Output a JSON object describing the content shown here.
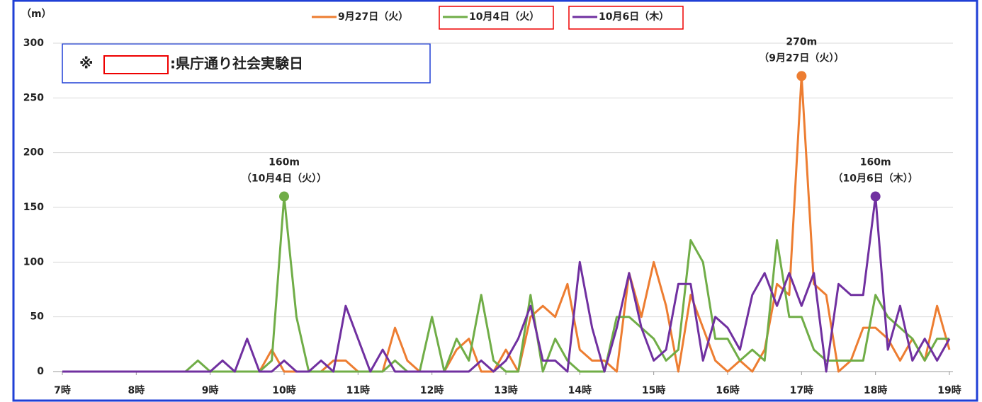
{
  "chart_data": {
    "type": "line",
    "y_label": "（m）",
    "note": {
      "symbol": "※",
      "text": ":県庁通り社会実験日"
    },
    "categories": [
      "7時",
      null,
      null,
      null,
      null,
      null,
      "8時",
      null,
      null,
      null,
      null,
      null,
      "9時",
      null,
      null,
      null,
      null,
      null,
      "10時",
      null,
      null,
      null,
      null,
      null,
      "11時",
      null,
      null,
      null,
      null,
      null,
      "12時",
      null,
      null,
      null,
      null,
      null,
      "13時",
      null,
      null,
      null,
      null,
      null,
      "14時",
      null,
      null,
      null,
      null,
      null,
      "15時",
      null,
      null,
      null,
      null,
      null,
      "16時",
      null,
      null,
      null,
      null,
      null,
      "17時",
      null,
      null,
      null,
      null,
      null,
      "18時",
      null,
      null,
      null,
      null,
      null,
      "19時"
    ],
    "ylim": [
      0,
      300
    ],
    "yticks": [
      0,
      50,
      100,
      150,
      200,
      250,
      300
    ],
    "grid": true,
    "series": [
      {
        "name": "9月27日（火）",
        "color": "#ed7d31",
        "highlight": false,
        "peak_label": "270m",
        "peak_note": "（9月27日（火））",
        "values": [
          0,
          0,
          0,
          0,
          0,
          0,
          0,
          0,
          0,
          0,
          0,
          0,
          0,
          0,
          0,
          0,
          0,
          20,
          0,
          0,
          0,
          0,
          10,
          10,
          0,
          0,
          0,
          40,
          10,
          0,
          0,
          0,
          20,
          30,
          0,
          0,
          20,
          0,
          50,
          60,
          50,
          80,
          20,
          10,
          10,
          0,
          90,
          50,
          100,
          60,
          0,
          70,
          40,
          10,
          0,
          10,
          0,
          20,
          80,
          70,
          270,
          80,
          70,
          0,
          10,
          40,
          40,
          30,
          10,
          30,
          10,
          60,
          20
        ]
      },
      {
        "name": "10月4日（火）",
        "color": "#70ad47",
        "highlight": true,
        "peak_label": "160m",
        "peak_note": "（10月4日（火））",
        "values": [
          0,
          0,
          0,
          0,
          0,
          0,
          0,
          0,
          0,
          0,
          0,
          10,
          0,
          0,
          0,
          0,
          0,
          10,
          160,
          50,
          0,
          0,
          0,
          0,
          0,
          0,
          0,
          10,
          0,
          0,
          50,
          0,
          30,
          10,
          70,
          10,
          0,
          0,
          70,
          0,
          30,
          10,
          0,
          0,
          0,
          50,
          50,
          40,
          30,
          10,
          20,
          120,
          100,
          30,
          30,
          10,
          20,
          10,
          120,
          50,
          50,
          20,
          10,
          10,
          10,
          10,
          70,
          50,
          40,
          30,
          10,
          30,
          30
        ]
      },
      {
        "name": "10月6日（木）",
        "color": "#7030a0",
        "highlight": true,
        "peak_label": "160m",
        "peak_note": "（10月6日（木））",
        "values": [
          0,
          0,
          0,
          0,
          0,
          0,
          0,
          0,
          0,
          0,
          0,
          0,
          0,
          10,
          0,
          30,
          0,
          0,
          10,
          0,
          0,
          10,
          0,
          60,
          30,
          0,
          20,
          0,
          0,
          0,
          0,
          0,
          0,
          0,
          10,
          0,
          10,
          30,
          60,
          10,
          10,
          0,
          100,
          40,
          0,
          40,
          90,
          40,
          10,
          20,
          80,
          80,
          10,
          50,
          40,
          20,
          70,
          90,
          60,
          90,
          60,
          90,
          0,
          80,
          70,
          70,
          160,
          20,
          60,
          10,
          30,
          10,
          30
        ]
      }
    ]
  }
}
